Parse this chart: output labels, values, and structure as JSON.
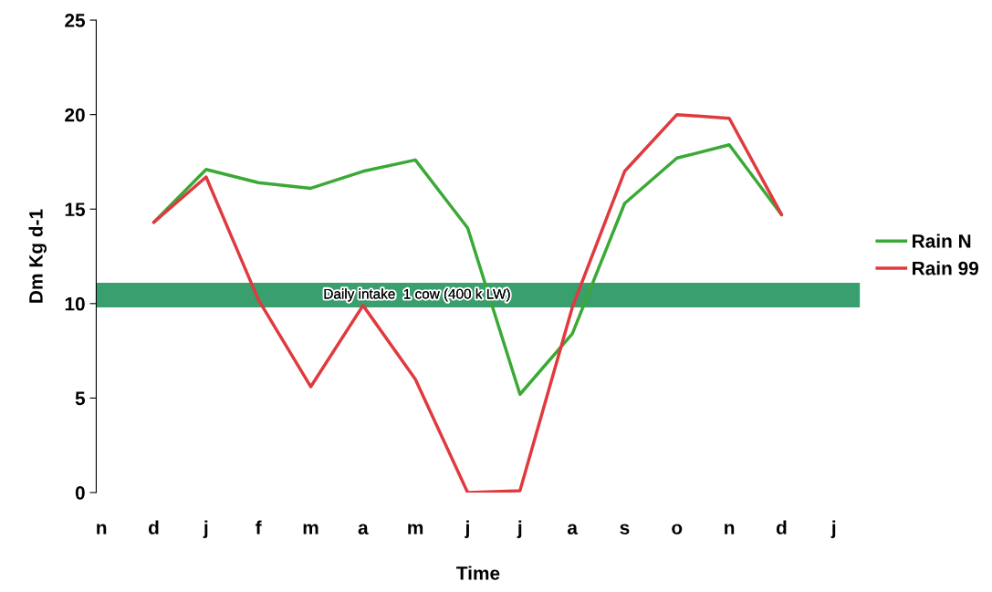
{
  "chart_data": {
    "type": "line",
    "xlabel": "Time",
    "ylabel": "Dm Kg d-1",
    "categories": [
      "n",
      "d",
      "j",
      "f",
      "m",
      "a",
      "m",
      "j",
      "j",
      "a",
      "s",
      "o",
      "n",
      "d",
      "j"
    ],
    "ylim": [
      0,
      25
    ],
    "yticks": [
      0,
      5,
      10,
      15,
      20,
      25
    ],
    "series": [
      {
        "name": "Rain N",
        "color": "#3aa935",
        "values": [
          null,
          14.3,
          17.1,
          16.4,
          16.1,
          17.0,
          17.6,
          14.0,
          5.2,
          8.4,
          15.3,
          17.7,
          18.4,
          14.7,
          null
        ]
      },
      {
        "name": "Rain 99",
        "color": "#e0393e",
        "values": [
          null,
          14.3,
          16.7,
          10.2,
          5.6,
          9.9,
          6.0,
          0,
          0.1,
          9.8,
          17.0,
          20.0,
          19.8,
          14.7,
          null
        ]
      }
    ],
    "bands": [
      {
        "axis": "y",
        "from": 9.8,
        "to": 11.1,
        "label": "Daily intake  1 cow (400 k LW)",
        "color": "#3a9f6e"
      }
    ],
    "legend": "right",
    "grid": false,
    "marker": "none",
    "line_style": "solid"
  }
}
